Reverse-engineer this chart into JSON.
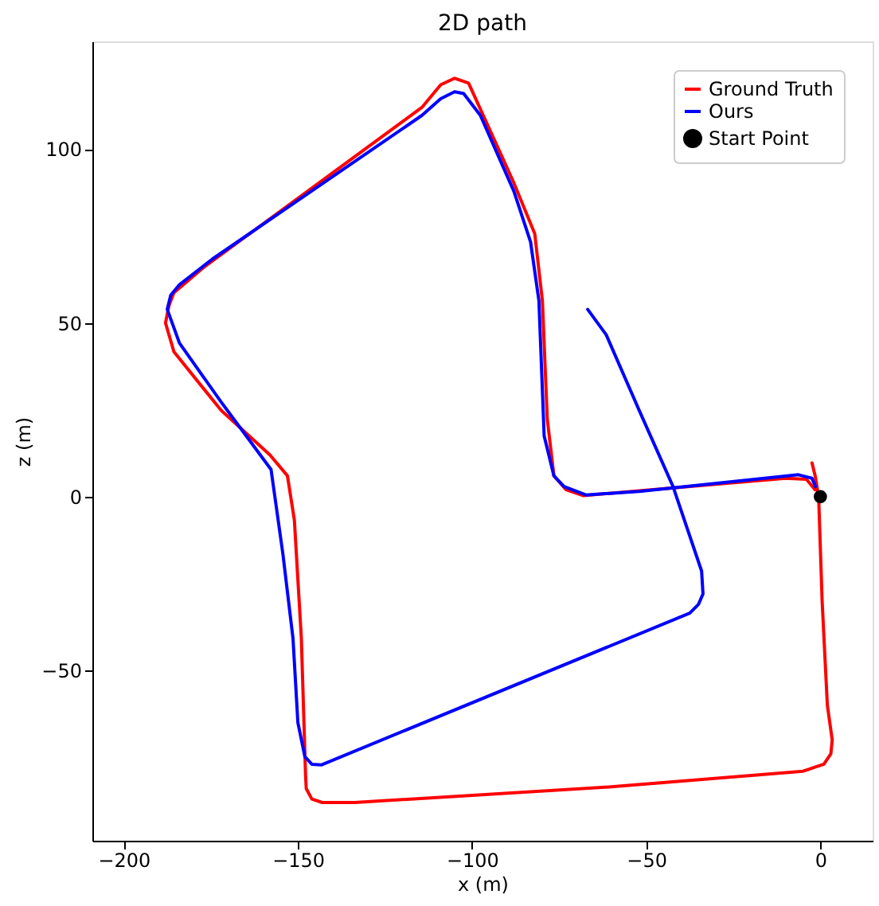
{
  "chart_data": {
    "type": "line",
    "title": "2D path",
    "xlabel": "x (m)",
    "ylabel": "z (m)",
    "xlim": [
      -209,
      15
    ],
    "ylim": [
      -99,
      131
    ],
    "xticks": [
      -200,
      -150,
      -100,
      -50,
      0
    ],
    "yticks": [
      -50,
      0,
      50,
      100
    ],
    "grid": false,
    "legend": "top right",
    "marker": "none",
    "line_style": "solid",
    "series": [
      {
        "name": "Ground Truth",
        "color": "#ff0000",
        "x": [
          -2.4,
          -1.5,
          -0.5,
          0.5,
          2,
          3.4,
          3,
          1,
          -5,
          -60,
          -133.7,
          -143,
          -146,
          -147.6,
          -147.8,
          -149,
          -151,
          -153,
          -158,
          -172,
          -185.6,
          -188,
          -187,
          -185.6,
          -177,
          -114.4,
          -109,
          -105,
          -101,
          -99,
          -88,
          -82,
          -79.8,
          -78.4,
          -76.5,
          -73,
          -68,
          -10,
          -4,
          -1.5
        ],
        "values": [
          9.7,
          6,
          0,
          -30,
          -60,
          -70,
          -74,
          -77,
          -79,
          -83.5,
          -88,
          -88,
          -87,
          -84,
          -80,
          -40.8,
          -6.8,
          6,
          12,
          24.8,
          41.7,
          50,
          55,
          58.7,
          66,
          112,
          118.5,
          120.4,
          119,
          114.6,
          90.3,
          75.7,
          56.3,
          22.3,
          6,
          2,
          0.3,
          5.3,
          5,
          2
        ]
      },
      {
        "name": "Ours",
        "color": "#0000ff",
        "x": [
          -66.8,
          -61.5,
          -52,
          -42.3,
          -34.1,
          -33.7,
          -35,
          -37.5,
          -143.3,
          -146,
          -148,
          -150,
          -151.4,
          -154.3,
          -157.7,
          -172,
          -184,
          -187.5,
          -186.5,
          -184,
          -174.5,
          -114.4,
          -109,
          -105,
          -102.4,
          -97.6,
          -88,
          -83.2,
          -80.8,
          -79.3,
          -76.5,
          -73.6,
          -67.3,
          -52,
          -6.3,
          -2.4,
          -1.4
        ],
        "values": [
          53.9,
          46.6,
          24.8,
          2.9,
          -21.4,
          -28,
          -31,
          -33.5,
          -77.2,
          -77,
          -74.8,
          -65,
          -40.8,
          -16.5,
          7.8,
          27.2,
          44.2,
          53.9,
          58,
          61,
          68.4,
          109.7,
          114.5,
          116.5,
          116,
          109.7,
          87.9,
          73.3,
          56.3,
          17.5,
          6,
          2.9,
          0.5,
          1.5,
          6.3,
          5.3,
          2.9
        ]
      },
      {
        "name": "Start Point",
        "color": "#000000",
        "type": "scatter",
        "marker": "circle",
        "x": [
          0
        ],
        "values": [
          0
        ]
      }
    ]
  }
}
